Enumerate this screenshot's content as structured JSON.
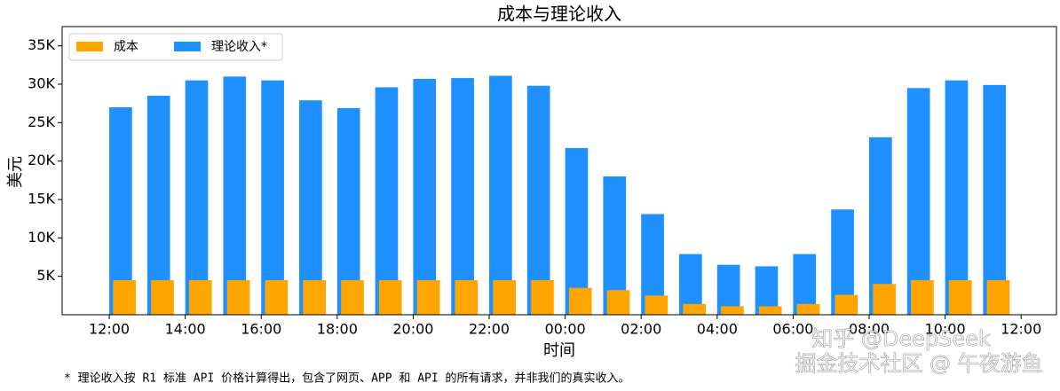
{
  "chart_data": {
    "type": "bar",
    "title": "成本与理论收入",
    "xlabel": "时间",
    "ylabel": "美元",
    "x": [
      0,
      1,
      2,
      3,
      4,
      5,
      6,
      7,
      8,
      9,
      10,
      11,
      12,
      13,
      14,
      15,
      16,
      17,
      18,
      19,
      20,
      21,
      22,
      23
    ],
    "series": [
      {
        "name": "理论收入*",
        "color": "#1e90ff",
        "values": [
          27000,
          28500,
          30500,
          31000,
          30500,
          27900,
          26900,
          29600,
          30700,
          30800,
          31100,
          29800,
          21700,
          18000,
          13100,
          7900,
          6500,
          6300,
          7900,
          13700,
          23100,
          29500,
          30500,
          29900
        ]
      },
      {
        "name": "成本",
        "color": "#ffa500",
        "values": [
          4500,
          4500,
          4500,
          4500,
          4500,
          4500,
          4500,
          4500,
          4500,
          4500,
          4500,
          4500,
          3500,
          3200,
          2500,
          1400,
          1100,
          1100,
          1400,
          2600,
          4000,
          4500,
          4500,
          4500
        ]
      }
    ],
    "xlim": [
      -1.24,
      24.93
    ],
    "xticks": [
      {
        "value": 0,
        "label": "12:00"
      },
      {
        "value": 2,
        "label": "14:00"
      },
      {
        "value": 4,
        "label": "16:00"
      },
      {
        "value": 6,
        "label": "18:00"
      },
      {
        "value": 8,
        "label": "20:00"
      },
      {
        "value": 10,
        "label": "22:00"
      },
      {
        "value": 12,
        "label": "00:00"
      },
      {
        "value": 14,
        "label": "02:00"
      },
      {
        "value": 16,
        "label": "04:00"
      },
      {
        "value": 18,
        "label": "06:00"
      },
      {
        "value": 20,
        "label": "08:00"
      },
      {
        "value": 22,
        "label": "10:00"
      },
      {
        "value": 24,
        "label": "12:00"
      }
    ],
    "ylim": [
      0,
      37500
    ],
    "yticks": [
      {
        "value": 5000,
        "label": "5K"
      },
      {
        "value": 10000,
        "label": "10K"
      },
      {
        "value": 15000,
        "label": "15K"
      },
      {
        "value": 20000,
        "label": "20K"
      },
      {
        "value": 25000,
        "label": "25K"
      },
      {
        "value": 30000,
        "label": "30K"
      },
      {
        "value": 35000,
        "label": "35K"
      }
    ],
    "legend": "upper left",
    "legend_order": [
      1,
      0
    ],
    "footnote": "* 理论收入按 R1 标准 API 价格计算得出，包含了网页、APP 和 API 的所有请求，并非我们的真实收入。",
    "watermarks": [
      "知乎 @DeepSeek",
      "掘金技术社区 @ 午夜游鱼"
    ]
  }
}
